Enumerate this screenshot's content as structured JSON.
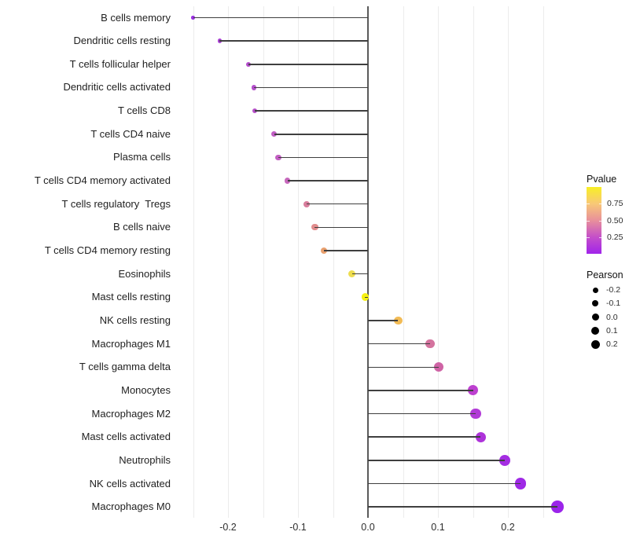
{
  "chart_data": {
    "type": "lollipop",
    "orientation": "horizontal",
    "title": "",
    "xlabel": "",
    "ylabel": "",
    "x_range": [
      -0.276,
      0.296
    ],
    "baseline_x": 0.0,
    "x_ticks": [
      {
        "value": -0.2,
        "label": "-0.2"
      },
      {
        "value": -0.1,
        "label": "-0.1"
      },
      {
        "value": 0.0,
        "label": "0.0"
      },
      {
        "value": 0.1,
        "label": "0.1"
      },
      {
        "value": 0.2,
        "label": "0.2"
      }
    ],
    "gridline_values": [
      -0.25,
      -0.2,
      -0.15,
      -0.1,
      -0.05,
      0.05,
      0.1,
      0.15,
      0.2,
      0.25
    ],
    "gridline_color": "#ececec",
    "zero_line_color": "#5a5a5a",
    "segment_color": "#3f3f3f",
    "rows": [
      {
        "label": "B cells memory",
        "pearson": -0.25,
        "dot_color": "#9a2fe1"
      },
      {
        "label": "Dendritic cells resting",
        "pearson": -0.212,
        "dot_color": "#a940d4"
      },
      {
        "label": "T cells follicular helper",
        "pearson": -0.171,
        "dot_color": "#b34dcb"
      },
      {
        "label": "Dendritic cells activated",
        "pearson": -0.163,
        "dot_color": "#b44fcb"
      },
      {
        "label": "T cells CD8",
        "pearson": -0.162,
        "dot_color": "#b650c9"
      },
      {
        "label": "T cells CD4 naive",
        "pearson": -0.134,
        "dot_color": "#c05dc3"
      },
      {
        "label": "Plasma cells",
        "pearson": -0.128,
        "dot_color": "#c25fc2"
      },
      {
        "label": "T cells CD4 memory activated",
        "pearson": -0.115,
        "dot_color": "#c768bd"
      },
      {
        "label": "T cells regulatory  Tregs",
        "pearson": -0.088,
        "dot_color": "#d87d9c"
      },
      {
        "label": "B cells naive",
        "pearson": -0.076,
        "dot_color": "#e18c8d"
      },
      {
        "label": "T cells CD4 memory resting",
        "pearson": -0.063,
        "dot_color": "#e9a06e"
      },
      {
        "label": "Eosinophils",
        "pearson": -0.023,
        "dot_color": "#eedd4f"
      },
      {
        "label": "Mast cells resting",
        "pearson": -0.004,
        "dot_color": "#f6f112"
      },
      {
        "label": "NK cells resting",
        "pearson": 0.043,
        "dot_color": "#f2bb55"
      },
      {
        "label": "Macrophages M1",
        "pearson": 0.089,
        "dot_color": "#d4739e"
      },
      {
        "label": "T cells gamma delta",
        "pearson": 0.101,
        "dot_color": "#cf63a5"
      },
      {
        "label": "Monocytes",
        "pearson": 0.15,
        "dot_color": "#bd40d0"
      },
      {
        "label": "Macrophages M2",
        "pearson": 0.154,
        "dot_color": "#b23ad7"
      },
      {
        "label": "Mast cells activated",
        "pearson": 0.161,
        "dot_color": "#ae33da"
      },
      {
        "label": "Neutrophils",
        "pearson": 0.195,
        "dot_color": "#a42de2"
      },
      {
        "label": "NK cells activated",
        "pearson": 0.218,
        "dot_color": "#9f29e6"
      },
      {
        "label": "Macrophages M0",
        "pearson": 0.271,
        "dot_color": "#9b24ea"
      }
    ],
    "legend": {
      "pvalue": {
        "title": "Pvalue",
        "gradient_stops_bottom_to_top": [
          "#a124ea",
          "#c44fc9",
          "#e8909b",
          "#f8c877",
          "#f8ef25"
        ],
        "ticks": [
          {
            "label": "0.75",
            "p": 0.75
          },
          {
            "label": "0.50",
            "p": 0.5
          },
          {
            "label": "0.25",
            "p": 0.25
          }
        ]
      },
      "pearson": {
        "title": "Pearson",
        "entries": [
          {
            "label": "-0.2",
            "value": -0.2
          },
          {
            "label": "-0.1",
            "value": -0.1
          },
          {
            "label": "0.0",
            "value": 0.0
          },
          {
            "label": "0.1",
            "value": 0.1
          },
          {
            "label": "0.2",
            "value": 0.2
          }
        ]
      }
    }
  }
}
